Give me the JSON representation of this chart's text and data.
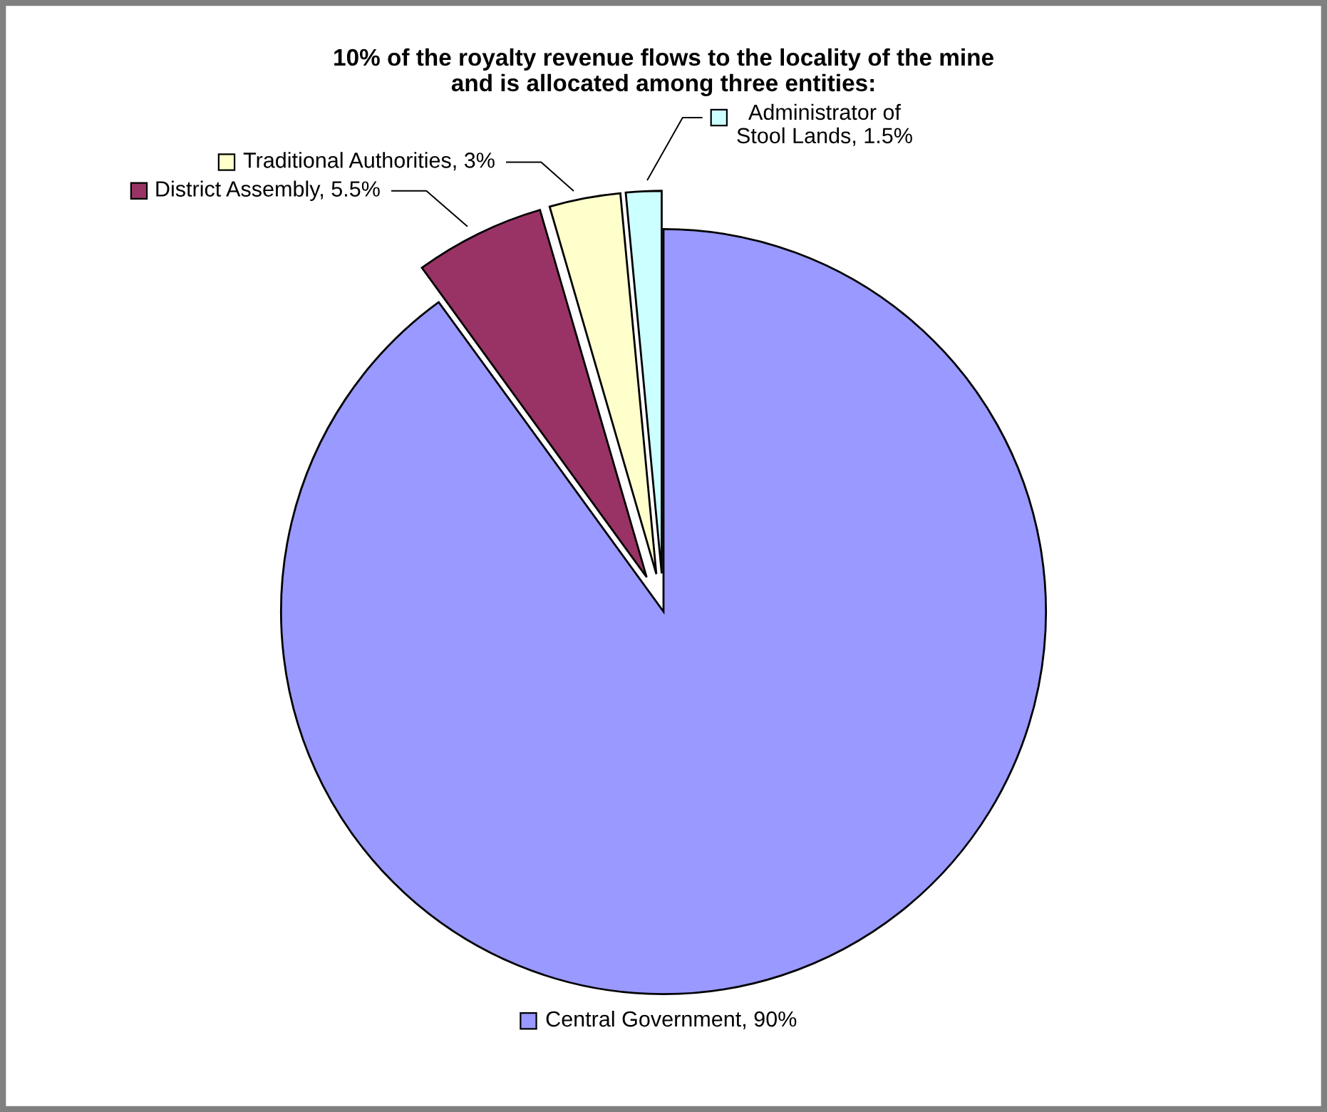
{
  "chart_data": {
    "type": "pie",
    "title": "10% of the royalty revenue flows to the locality of the mine\nand is allocated among three entities:",
    "categories": [
      "Central Government",
      "District Assembly",
      "Traditional Authorities",
      "Administrator of Stool Lands"
    ],
    "values": [
      90,
      5.5,
      3,
      1.5
    ],
    "value_labels": [
      "90%",
      "5.5%",
      "3%",
      "1.5%"
    ],
    "colors": [
      "#9999ff",
      "#993366",
      "#ffffcc",
      "#ccffff"
    ],
    "legend": "top"
  }
}
